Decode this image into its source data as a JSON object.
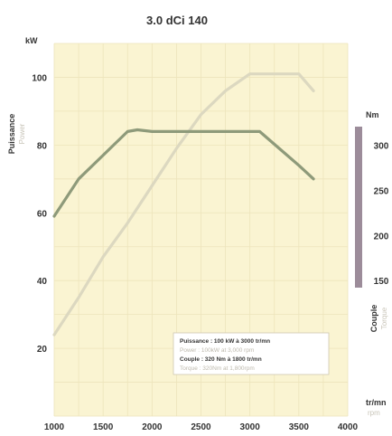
{
  "chart_data": {
    "type": "line",
    "title": "3.0 dCi 140",
    "x": {
      "range": [
        1000,
        4000
      ],
      "ticks": [
        1000,
        1500,
        2000,
        2500,
        3000,
        3500,
        4000
      ],
      "unit": "tr/mn",
      "unit_secondary": "rpm"
    },
    "y_left": {
      "label": "Puissance",
      "label_secondary": "Power",
      "unit": "kW",
      "range": [
        0,
        110
      ],
      "ticks": [
        20,
        40,
        60,
        80,
        100
      ]
    },
    "y_right": {
      "label": "Couple",
      "label_secondary": "Torque",
      "unit": "Nm",
      "ticks": [
        {
          "label": "300",
          "at_left": 80
        },
        {
          "label": "250",
          "at_left": 66.67
        },
        {
          "label": "200",
          "at_left": 53.33
        },
        {
          "label": "150",
          "at_left": 40
        }
      ]
    },
    "grid": true,
    "series": [
      {
        "name": "Puissance",
        "color": "#dcd8c0",
        "axis": "left",
        "points": [
          [
            1000,
            24
          ],
          [
            1250,
            35
          ],
          [
            1500,
            47
          ],
          [
            1750,
            57
          ],
          [
            2000,
            68
          ],
          [
            2250,
            79
          ],
          [
            2500,
            89
          ],
          [
            2750,
            96
          ],
          [
            3000,
            101
          ],
          [
            3250,
            101
          ],
          [
            3500,
            101
          ],
          [
            3650,
            96
          ]
        ]
      },
      {
        "name": "Couple",
        "color": "#8e9a7a",
        "axis": "right",
        "points": [
          [
            1000,
            59
          ],
          [
            1250,
            70
          ],
          [
            1500,
            77
          ],
          [
            1750,
            84
          ],
          [
            1850,
            84.5
          ],
          [
            2000,
            84
          ],
          [
            2500,
            84
          ],
          [
            3000,
            84
          ],
          [
            3100,
            84
          ],
          [
            3300,
            79
          ],
          [
            3500,
            74
          ],
          [
            3650,
            70
          ]
        ]
      }
    ],
    "legend": {
      "position": "lower-right",
      "lines": [
        {
          "text": "Puissance : 100 kW à 3000 tr/mn",
          "style": "strong"
        },
        {
          "text": "Power : 100kW at 3,000 rpm",
          "style": "faint"
        },
        {
          "text": "Couple : 320 Nm à 1800 tr/mn",
          "style": "strong"
        },
        {
          "text": "Torque : 320Nm at 1,800rpm",
          "style": "faint"
        }
      ]
    },
    "colors": {
      "plot_bg": "#faf4d2",
      "grid": "#ede4bb",
      "torque_axis_bar": "#9c8c9a",
      "text": "#333333"
    }
  }
}
